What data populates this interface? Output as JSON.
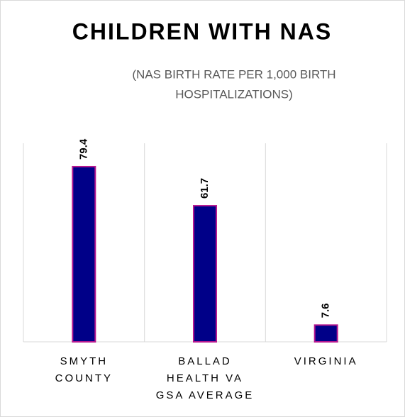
{
  "chart_data": {
    "type": "bar",
    "title": "CHILDREN WITH NAS",
    "subtitle": [
      "(NAS BIRTH RATE PER 1,000 BIRTH",
      "HOSPITALIZATIONS)"
    ],
    "categories": [
      "SMYTH COUNTY",
      "BALLAD HEALTH VA GSA AVERAGE",
      "VIRGINIA"
    ],
    "values": [
      79.4,
      61.7,
      7.6
    ],
    "color": "#000088",
    "edge_color": "#b5178f",
    "ylim": [
      0,
      90
    ]
  }
}
